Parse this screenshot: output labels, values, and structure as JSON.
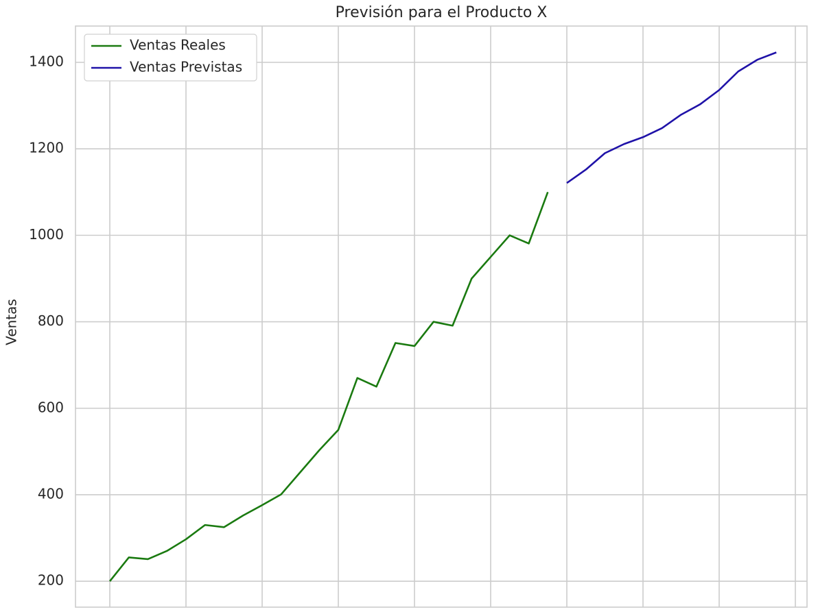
{
  "chart_data": {
    "type": "line",
    "title": "Previsión para el Producto X",
    "y_label": "Ventas",
    "categories": [
      null,
      null,
      null,
      null,
      null,
      null,
      null,
      null,
      null,
      null,
      null,
      null,
      null,
      null,
      null,
      null,
      null,
      null,
      null,
      null,
      null,
      null,
      null,
      null,
      null,
      null,
      null,
      null,
      null,
      null,
      null,
      null,
      null,
      null,
      null,
      null
    ],
    "series": [
      {
        "name": "Ventas Reales",
        "color": "#1a7a10",
        "values": [
          200,
          255,
          251,
          270,
          297,
          330,
          325,
          352,
          376,
          401,
          452,
          503,
          550,
          670,
          650,
          751,
          744,
          800,
          791,
          900,
          950,
          1000,
          981,
          1100,
          null,
          null,
          null,
          null,
          null,
          null,
          null,
          null,
          null,
          null,
          null,
          null
        ]
      },
      {
        "name": "Ventas Previstas",
        "color": "#1f12a8",
        "values": [
          null,
          null,
          null,
          null,
          null,
          null,
          null,
          null,
          null,
          null,
          null,
          null,
          null,
          null,
          null,
          null,
          null,
          null,
          null,
          null,
          null,
          null,
          null,
          null,
          1121,
          1152,
          1190,
          1211,
          1227,
          1248,
          1279,
          1303,
          1336,
          1379,
          1406,
          1423
        ]
      }
    ],
    "ylim": [
      140,
      1484
    ],
    "yticks": [
      200,
      400,
      600,
      800,
      1000,
      1200,
      1400
    ],
    "grid": true,
    "legend": "upper left"
  }
}
